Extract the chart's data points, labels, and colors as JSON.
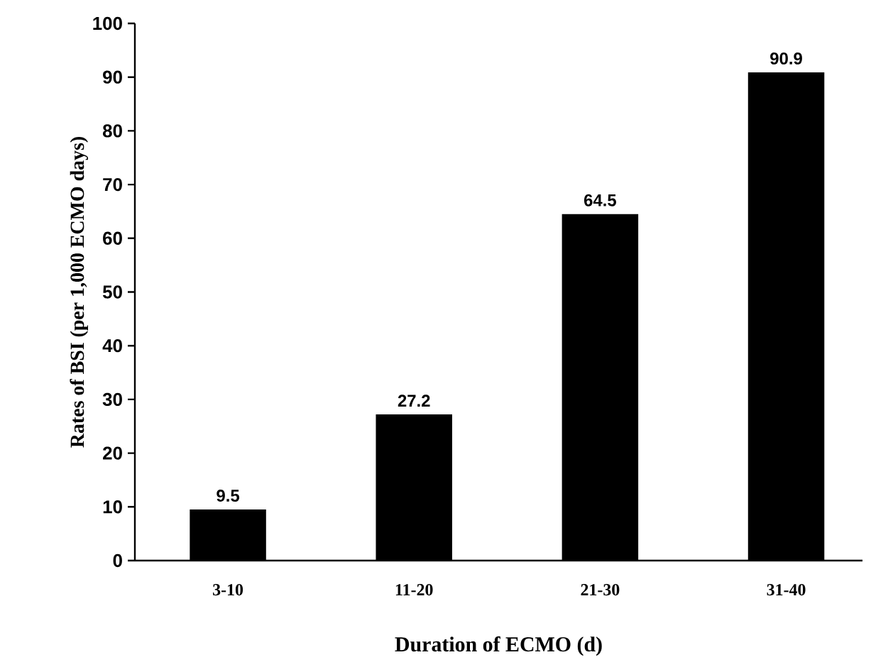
{
  "chart_data": {
    "type": "bar",
    "xlabel": "Duration of ECMO (d)",
    "ylabel": "Rates of BSI (per 1,000 ECMO days)",
    "categories": [
      "3-10",
      "11-20",
      "21-30",
      "31-40"
    ],
    "values": [
      9.5,
      27.2,
      64.5,
      90.9
    ],
    "color": "#000000",
    "ylim": [
      0,
      100
    ],
    "yticks": [
      0,
      10,
      20,
      30,
      40,
      50,
      60,
      70,
      80,
      90,
      100
    ],
    "data_labels": true,
    "grid": false
  }
}
